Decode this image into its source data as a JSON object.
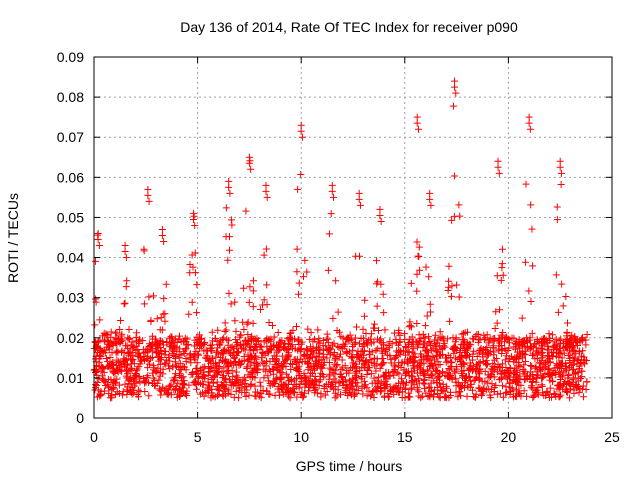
{
  "chart_data": {
    "type": "scatter",
    "title": "Day 136 of 2014, Rate Of TEC Index for receiver p090",
    "xlabel": "GPS time / hours",
    "ylabel": "ROTI / TECUs",
    "xlim": [
      0,
      25
    ],
    "ylim": [
      0,
      0.09
    ],
    "xticks": [
      0,
      5,
      10,
      15,
      20,
      25
    ],
    "yticks": [
      0,
      0.01,
      0.02,
      0.03,
      0.04,
      0.05,
      0.06,
      0.07,
      0.08,
      0.09
    ],
    "xtick_labels": [
      "0",
      "5",
      "10",
      "15",
      "20",
      "25"
    ],
    "ytick_labels": [
      "0",
      "0.01",
      "0.02",
      "0.03",
      "0.04",
      "0.05",
      "0.06",
      "0.07",
      "0.08",
      "0.09"
    ],
    "grid": true,
    "series": [
      {
        "name": "ROTI",
        "marker": "plus",
        "color": "#ff0000",
        "x_range": [
          0,
          23.8
        ],
        "typical_range": [
          0.005,
          0.02
        ],
        "peaks": [
          {
            "x": 0.2,
            "y": 0.046
          },
          {
            "x": 1.5,
            "y": 0.043
          },
          {
            "x": 2.6,
            "y": 0.057
          },
          {
            "x": 3.3,
            "y": 0.047
          },
          {
            "x": 4.8,
            "y": 0.051
          },
          {
            "x": 6.5,
            "y": 0.059
          },
          {
            "x": 7.5,
            "y": 0.065
          },
          {
            "x": 8.3,
            "y": 0.058
          },
          {
            "x": 10.0,
            "y": 0.073
          },
          {
            "x": 11.5,
            "y": 0.058
          },
          {
            "x": 12.8,
            "y": 0.056
          },
          {
            "x": 13.8,
            "y": 0.052
          },
          {
            "x": 15.6,
            "y": 0.075
          },
          {
            "x": 16.2,
            "y": 0.056
          },
          {
            "x": 17.4,
            "y": 0.084
          },
          {
            "x": 19.5,
            "y": 0.064
          },
          {
            "x": 21.0,
            "y": 0.075
          },
          {
            "x": 22.5,
            "y": 0.064
          }
        ]
      }
    ]
  }
}
